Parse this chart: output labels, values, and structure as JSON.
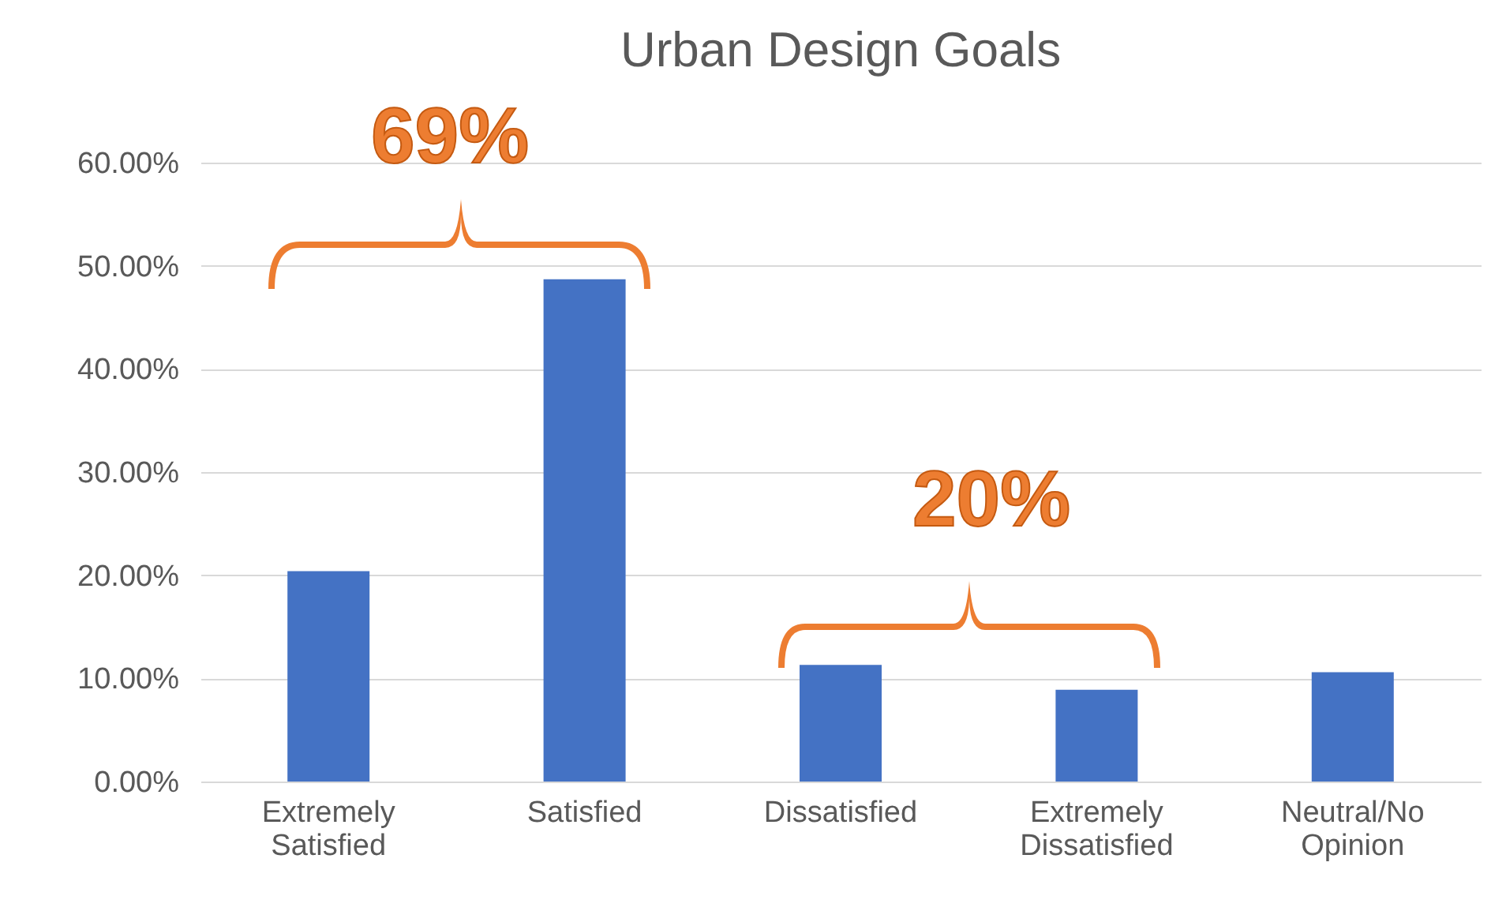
{
  "chart_data": {
    "type": "bar",
    "title": "Urban Design Goals",
    "categories": [
      "Extremely Satisfied",
      "Satisfied",
      "Dissatisfied",
      "Extremely Dissatisfied",
      "Neutral/No Opinion"
    ],
    "values": [
      20.4,
      48.7,
      11.3,
      8.9,
      10.6
    ],
    "color": "#4472c4",
    "ylim": [
      0,
      60
    ],
    "yticks": [
      {
        "value": 0,
        "label": "0.00%"
      },
      {
        "value": 10,
        "label": "10.00%"
      },
      {
        "value": 20,
        "label": "20.00%"
      },
      {
        "value": 30,
        "label": "30.00%"
      },
      {
        "value": 40,
        "label": "40.00%"
      },
      {
        "value": 50,
        "label": "50.00%"
      },
      {
        "value": 60,
        "label": "60.00%"
      }
    ],
    "grid": "y",
    "legend": false,
    "annotations": [
      "69%",
      "20%"
    ]
  }
}
